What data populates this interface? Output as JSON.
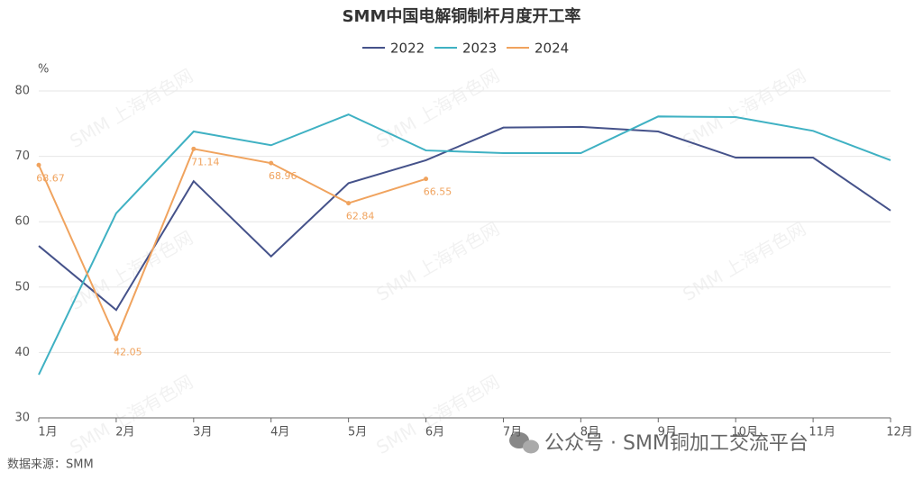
{
  "chart_data": {
    "type": "line",
    "title": "SMM中国电解铜制杆月度开工率",
    "y_unit": "%",
    "categories": [
      "1月",
      "2月",
      "3月",
      "4月",
      "5月",
      "6月",
      "7月",
      "8月",
      "9月",
      "10月",
      "11月",
      "12月"
    ],
    "series": [
      {
        "name": "2022",
        "color": "#45528a",
        "values": [
          56.3,
          46.5,
          66.2,
          54.7,
          65.9,
          69.4,
          74.4,
          74.5,
          73.8,
          69.8,
          69.8,
          61.7
        ]
      },
      {
        "name": "2023",
        "color": "#3fb1c3",
        "values": [
          36.6,
          61.3,
          73.8,
          71.7,
          76.4,
          70.9,
          70.5,
          70.5,
          76.1,
          76.0,
          73.9,
          69.4
        ]
      },
      {
        "name": "2024",
        "color": "#f0a35e",
        "values": [
          68.67,
          42.05,
          71.14,
          68.96,
          62.84,
          66.55,
          null,
          null,
          null,
          null,
          null,
          null
        ],
        "show_labels": true
      }
    ],
    "ylim": [
      30,
      80
    ],
    "yticks": [
      30,
      40,
      50,
      60,
      70,
      80
    ],
    "grid": true,
    "legend": "top",
    "source": "数据来源：SMM",
    "watermark": "SMM 上海有色网",
    "footer_watermark": "公众号 · SMM铜加工交流平台"
  }
}
